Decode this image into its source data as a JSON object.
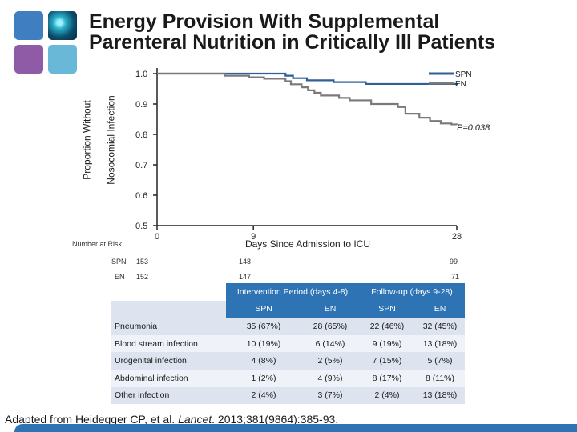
{
  "title": {
    "line1": "Energy Provision With Supplemental",
    "line2": "Parenteral Nutrition in Critically Ill Patients"
  },
  "chart_data": {
    "type": "line",
    "title": "Energy Provision With Supplemental Parenteral Nutrition in Critically Ill Patients",
    "ylabel_line1": "Proportion Without",
    "ylabel_line2": "Nosocomial Infection",
    "xlabel": "Days Since Admission to ICU",
    "ylim": [
      0.5,
      1.0
    ],
    "xlim": [
      0,
      28
    ],
    "y_ticks": [
      "0.5",
      "0.6",
      "0.7",
      "0.8",
      "0.9",
      "1.0"
    ],
    "x_ticks": [
      "0",
      "9",
      "28"
    ],
    "legend": [
      "SPN",
      "EN"
    ],
    "annotation": "P=0.038",
    "series": [
      {
        "name": "SPN",
        "color": "#2e5f95",
        "points": [
          [
            0,
            1.0
          ],
          [
            3.2,
            1.0
          ],
          [
            11,
            1.0
          ],
          [
            12,
            0.993
          ],
          [
            12.7,
            0.985
          ],
          [
            14,
            0.978
          ],
          [
            16.5,
            0.972
          ],
          [
            19.5,
            0.966
          ],
          [
            28,
            0.962
          ]
        ]
      },
      {
        "name": "EN",
        "color": "#7a7a7a",
        "points": [
          [
            0,
            1.0
          ],
          [
            3.2,
            1.0
          ],
          [
            5.6,
            1.0
          ],
          [
            6.3,
            0.993
          ],
          [
            8.6,
            0.988
          ],
          [
            10,
            0.983
          ],
          [
            12,
            0.975
          ],
          [
            12.5,
            0.965
          ],
          [
            13.5,
            0.955
          ],
          [
            14.1,
            0.945
          ],
          [
            14.7,
            0.937
          ],
          [
            15.3,
            0.928
          ],
          [
            17,
            0.92
          ],
          [
            18,
            0.912
          ],
          [
            20,
            0.9
          ],
          [
            22.5,
            0.89
          ],
          [
            23.2,
            0.868
          ],
          [
            24.5,
            0.855
          ],
          [
            25.5,
            0.844
          ],
          [
            26.5,
            0.836
          ],
          [
            27.5,
            0.833
          ],
          [
            28,
            0.832
          ]
        ]
      }
    ]
  },
  "risk_table": {
    "label": "Number at Risk",
    "rows": [
      {
        "group": "SPN",
        "d0": "153",
        "d9": "148",
        "d28": "99"
      },
      {
        "group": "EN",
        "d0": "152",
        "d9": "147",
        "d28": "71"
      }
    ]
  },
  "infection_table": {
    "period1": "Intervention Period (days 4-8)",
    "period2": "Follow-up (days 9-28)",
    "sub": [
      "SPN",
      "EN",
      "SPN",
      "EN"
    ],
    "rows": [
      {
        "label": "Pneumonia",
        "v": [
          "35 (67%)",
          "28 (65%)",
          "22 (46%)",
          "32 (45%)"
        ]
      },
      {
        "label": "Blood stream infection",
        "v": [
          "10 (19%)",
          "6 (14%)",
          "9 (19%)",
          "13 (18%)"
        ]
      },
      {
        "label": "Urogenital infection",
        "v": [
          "4 (8%)",
          "2 (5%)",
          "7 (15%)",
          "5 (7%)"
        ]
      },
      {
        "label": "Abdominal infection",
        "v": [
          "1 (2%)",
          "4 (9%)",
          "8 (17%)",
          "8 (11%)"
        ]
      },
      {
        "label": "Other infection",
        "v": [
          "2 (4%)",
          "3 (7%)",
          "2 (4%)",
          "13 (18%)"
        ]
      }
    ]
  },
  "caption": {
    "prefix": "Adapted from Heidegger CP, et al. ",
    "journal": "Lancet",
    "suffix": ". 2013;381(9864):385-93."
  }
}
